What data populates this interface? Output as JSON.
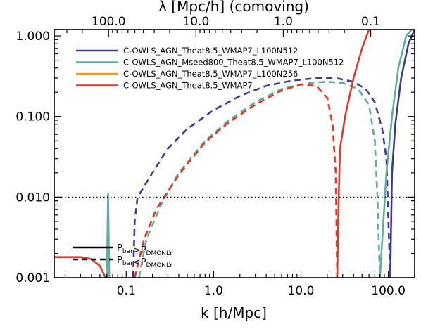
{
  "chart_data": {
    "type": "line",
    "xlabel": "k [h/Mpc]",
    "top_xlabel": "λ [Mpc/h] (comoving)",
    "x_scale": "log",
    "y_scale": "log",
    "xlim": [
      0.015,
      200
    ],
    "ylim": [
      0.001,
      1.2
    ],
    "x_ticks": [
      {
        "value": 0.1,
        "label": "0.1"
      },
      {
        "value": 1,
        "label": "1.0"
      },
      {
        "value": 10,
        "label": "10.0"
      },
      {
        "value": 100,
        "label": "100.0"
      }
    ],
    "y_ticks": [
      {
        "value": 0.001,
        "label": "0.001"
      },
      {
        "value": 0.01,
        "label": "0.010"
      },
      {
        "value": 0.1,
        "label": "0.100"
      },
      {
        "value": 1,
        "label": "1.000"
      }
    ],
    "top_ticks": [
      {
        "value": 100,
        "label": "100.0"
      },
      {
        "value": 10,
        "label": "10.0"
      },
      {
        "value": 1,
        "label": "1.0"
      },
      {
        "value": 0.1,
        "label": "0.1"
      }
    ],
    "reference_line": {
      "y": 0.01,
      "style": "dotted"
    },
    "legend_position": "top-left",
    "inequality_legend": {
      "solid": {
        "P": "P",
        "sub1": "bar",
        "op": ">",
        "P2": "P",
        "sub2": "DMONLY"
      },
      "dashed": {
        "P": "P",
        "sub1": "bar",
        "op": "<",
        "P2": "P",
        "sub2": "DMONLY"
      }
    },
    "series": [
      {
        "name": "C-OWLS_AGN_Theat8.5_WMAP7_L100N512",
        "color": "#3b3a98",
        "segments": [
          {
            "style": "dashed",
            "points": [
              [
                0.12,
                0.001
              ],
              [
                0.125,
                0.005
              ],
              [
                0.135,
                0.01
              ],
              [
                0.2,
                0.02
              ],
              [
                0.3,
                0.04
              ],
              [
                0.5,
                0.07
              ],
              [
                1,
                0.12
              ],
              [
                2,
                0.18
              ],
              [
                4,
                0.24
              ],
              [
                8,
                0.28
              ],
              [
                15,
                0.3
              ],
              [
                25,
                0.3
              ],
              [
                40,
                0.27
              ],
              [
                55,
                0.22
              ],
              [
                70,
                0.15
              ],
              [
                85,
                0.07
              ],
              [
                95,
                0.03
              ],
              [
                105,
                0.001
              ]
            ]
          },
          {
            "style": "solid",
            "points": [
              [
                105,
                0.001
              ],
              [
                110,
                0.02
              ],
              [
                120,
                0.08
              ],
              [
                140,
                0.3
              ],
              [
                170,
                0.8
              ],
              [
                200,
                1.2
              ]
            ]
          }
        ]
      },
      {
        "name": "C-OWLS_AGN_Mseed800_Theat8.5_WMAP7_L100N512",
        "color": "#5fae9e",
        "segments": [
          {
            "style": "solid",
            "points": [
              [
                0.06,
                0.001
              ],
              [
                0.062,
                0.011
              ],
              [
                0.064,
                0.001
              ]
            ]
          },
          {
            "style": "dashed",
            "points": [
              [
                0.14,
                0.001
              ],
              [
                0.17,
                0.003
              ],
              [
                0.25,
                0.008
              ],
              [
                0.4,
                0.02
              ],
              [
                0.8,
                0.05
              ],
              [
                1.5,
                0.09
              ],
              [
                3,
                0.15
              ],
              [
                6,
                0.22
              ],
              [
                12,
                0.26
              ],
              [
                20,
                0.27
              ],
              [
                30,
                0.26
              ],
              [
                45,
                0.22
              ],
              [
                60,
                0.14
              ],
              [
                70,
                0.05
              ],
              [
                75,
                0.01
              ],
              [
                80,
                0.001
              ]
            ]
          },
          {
            "style": "solid",
            "points": [
              [
                80,
                0.001
              ],
              [
                95,
                0.02
              ],
              [
                110,
                0.1
              ],
              [
                130,
                0.4
              ],
              [
                160,
                1
              ],
              [
                185,
                1.2
              ]
            ]
          }
        ]
      },
      {
        "name": "C-OWLS_AGN_Theat8.5_WMAP7_L100N256",
        "color": "#e6a02a",
        "segments": [
          {
            "style": "dashed",
            "points": [
              [
                0.125,
                0.001
              ],
              [
                0.16,
                0.003
              ],
              [
                0.22,
                0.007
              ],
              [
                0.4,
                0.019
              ],
              [
                0.8,
                0.048
              ],
              [
                1.5,
                0.085
              ],
              [
                3,
                0.14
              ],
              [
                6,
                0.21
              ],
              [
                10,
                0.25
              ],
              [
                15,
                0.24
              ],
              [
                20,
                0.17
              ],
              [
                23,
                0.08
              ],
              [
                25,
                0.02
              ],
              [
                26,
                0.001
              ]
            ]
          }
        ]
      },
      {
        "name": "C-OWLS_AGN_Theat8.5_WMAP7",
        "color": "#e23a2a",
        "segments": [
          {
            "style": "solid",
            "points": [
              [
                0.015,
                0.0018
              ],
              [
                0.03,
                0.0018
              ],
              [
                0.04,
                0.0017
              ],
              [
                0.05,
                0.0014
              ],
              [
                0.058,
                0.001
              ]
            ]
          },
          {
            "style": "dashed",
            "points": [
              [
                0.125,
                0.001
              ],
              [
                0.16,
                0.003
              ],
              [
                0.22,
                0.007
              ],
              [
                0.4,
                0.019
              ],
              [
                0.8,
                0.048
              ],
              [
                1.5,
                0.085
              ],
              [
                3,
                0.14
              ],
              [
                6,
                0.21
              ],
              [
                10,
                0.25
              ],
              [
                15,
                0.24
              ],
              [
                20,
                0.17
              ],
              [
                23,
                0.08
              ],
              [
                25,
                0.02
              ],
              [
                26,
                0.001
              ]
            ]
          },
          {
            "style": "solid",
            "points": [
              [
                26,
                0.001
              ],
              [
                27,
                0.01
              ],
              [
                28,
                0.04
              ],
              [
                32,
                0.1
              ],
              [
                40,
                0.3
              ],
              [
                50,
                0.7
              ],
              [
                60,
                1.2
              ]
            ]
          }
        ]
      }
    ]
  }
}
